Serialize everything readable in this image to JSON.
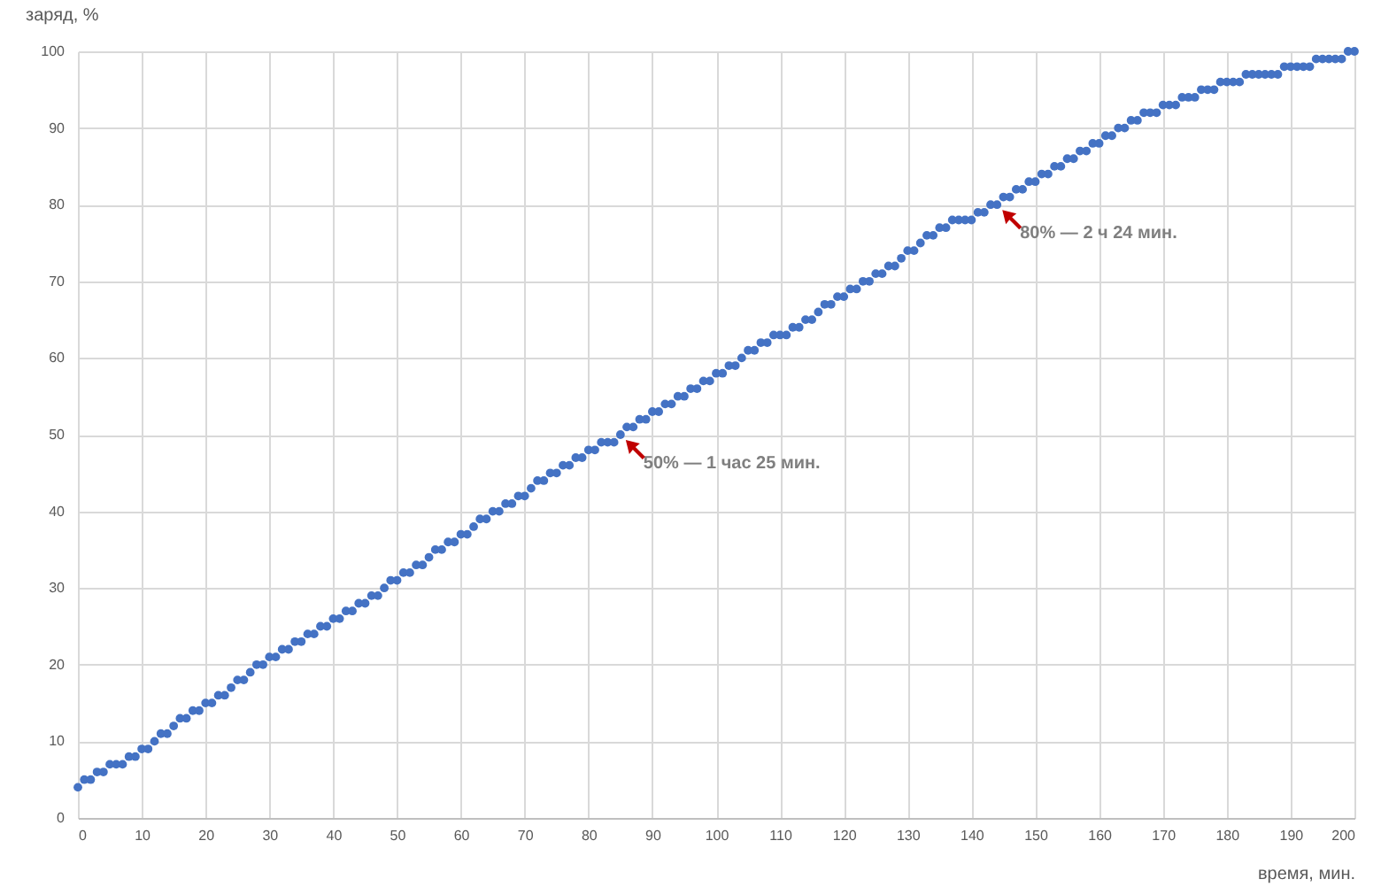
{
  "chart_data": {
    "type": "scatter",
    "xlabel": "время, мин.",
    "ylabel": "заряд, %",
    "x": [
      0,
      1,
      2,
      3,
      4,
      5,
      6,
      7,
      8,
      9,
      10,
      11,
      12,
      13,
      14,
      15,
      16,
      17,
      18,
      19,
      20,
      21,
      22,
      23,
      24,
      25,
      26,
      27,
      28,
      29,
      30,
      31,
      32,
      33,
      34,
      35,
      36,
      37,
      38,
      39,
      40,
      41,
      42,
      43,
      44,
      45,
      46,
      47,
      48,
      49,
      50,
      51,
      52,
      53,
      54,
      55,
      56,
      57,
      58,
      59,
      60,
      61,
      62,
      63,
      64,
      65,
      66,
      67,
      68,
      69,
      70,
      71,
      72,
      73,
      74,
      75,
      76,
      77,
      78,
      79,
      80,
      81,
      82,
      83,
      84,
      85,
      86,
      87,
      88,
      89,
      90,
      91,
      92,
      93,
      94,
      95,
      96,
      97,
      98,
      99,
      100,
      101,
      102,
      103,
      104,
      105,
      106,
      107,
      108,
      109,
      110,
      111,
      112,
      113,
      114,
      115,
      116,
      117,
      118,
      119,
      120,
      121,
      122,
      123,
      124,
      125,
      126,
      127,
      128,
      129,
      130,
      131,
      132,
      133,
      134,
      135,
      136,
      137,
      138,
      139,
      140,
      141,
      142,
      143,
      144,
      145,
      146,
      147,
      148,
      149,
      150,
      151,
      152,
      153,
      154,
      155,
      156,
      157,
      158,
      159,
      160,
      161,
      162,
      163,
      164,
      165,
      166,
      167,
      168,
      169,
      170,
      171,
      172,
      173,
      174,
      175,
      176,
      177,
      178,
      179,
      180,
      181,
      182,
      183,
      184,
      185,
      186,
      187,
      188,
      189,
      190,
      191,
      192,
      193,
      194,
      195,
      196,
      197,
      198,
      199,
      200
    ],
    "series": [
      {
        "color": "#4472c4",
        "values": [
          4,
          5,
          5,
          6,
          6,
          7,
          7,
          7,
          8,
          8,
          9,
          9,
          10,
          11,
          11,
          12,
          13,
          13,
          14,
          14,
          15,
          15,
          16,
          16,
          17,
          18,
          18,
          19,
          20,
          20,
          21,
          21,
          22,
          22,
          23,
          23,
          24,
          24,
          25,
          25,
          26,
          26,
          27,
          27,
          28,
          28,
          29,
          29,
          30,
          31,
          31,
          32,
          32,
          33,
          33,
          34,
          35,
          35,
          36,
          36,
          37,
          37,
          38,
          39,
          39,
          40,
          40,
          41,
          41,
          42,
          42,
          43,
          44,
          44,
          45,
          45,
          46,
          46,
          47,
          47,
          48,
          48,
          49,
          49,
          49,
          50,
          51,
          51,
          52,
          52,
          53,
          53,
          54,
          54,
          55,
          55,
          56,
          56,
          57,
          57,
          58,
          58,
          59,
          59,
          60,
          61,
          61,
          62,
          62,
          63,
          63,
          63,
          64,
          64,
          65,
          65,
          66,
          67,
          67,
          68,
          68,
          69,
          69,
          70,
          70,
          71,
          71,
          72,
          72,
          73,
          74,
          74,
          75,
          76,
          76,
          77,
          77,
          78,
          78,
          78,
          78,
          79,
          79,
          80,
          80,
          81,
          81,
          82,
          82,
          83,
          83,
          84,
          84,
          85,
          85,
          86,
          86,
          87,
          87,
          88,
          88,
          89,
          89,
          90,
          90,
          91,
          91,
          92,
          92,
          92,
          93,
          93,
          93,
          94,
          94,
          94,
          95,
          95,
          95,
          96,
          96,
          96,
          96,
          97,
          97,
          97,
          97,
          97,
          97,
          98,
          98,
          98,
          98,
          98,
          99,
          99,
          99,
          99,
          99,
          100,
          100
        ]
      }
    ],
    "xlim": [
      0,
      200
    ],
    "xticks": [
      0,
      10,
      20,
      30,
      40,
      50,
      60,
      70,
      80,
      90,
      100,
      110,
      120,
      130,
      140,
      150,
      160,
      170,
      180,
      190,
      200
    ],
    "ylim": [
      0,
      100
    ],
    "yticks": [
      0,
      10,
      20,
      30,
      40,
      50,
      60,
      70,
      80,
      90,
      100
    ],
    "grid": true,
    "marker": "circle",
    "annotations": [
      {
        "text": "50% — 1 час 25 мин.",
        "x": 85,
        "y": 50
      },
      {
        "text": "80% — 2 ч 24 мин.",
        "x": 144,
        "y": 80
      }
    ]
  }
}
